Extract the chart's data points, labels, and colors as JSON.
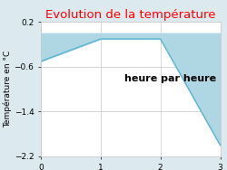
{
  "title": "Evolution de la température",
  "title_color": "#ff0000",
  "ylabel": "Température en °C",
  "xlabel": "heure par heure",
  "x_values": [
    0,
    1,
    2,
    3
  ],
  "y_values": [
    -0.5,
    -0.1,
    -0.1,
    -2.0
  ],
  "ylim": [
    -2.2,
    0.2
  ],
  "xlim": [
    0,
    3
  ],
  "fill_color": "#aed6e3",
  "fill_alpha": 1.0,
  "line_color": "#5ab4d4",
  "line_width": 1.0,
  "background_color": "#dce9ef",
  "plot_bg_color": "#ffffff",
  "grid_color": "#c8c8c8",
  "yticks": [
    0.2,
    -0.6,
    -1.4,
    -2.2
  ],
  "xticks": [
    0,
    1,
    2,
    3
  ],
  "title_fontsize": 9.5,
  "ylabel_fontsize": 6.5,
  "xlabel_fontsize": 8,
  "tick_fontsize": 6.5
}
